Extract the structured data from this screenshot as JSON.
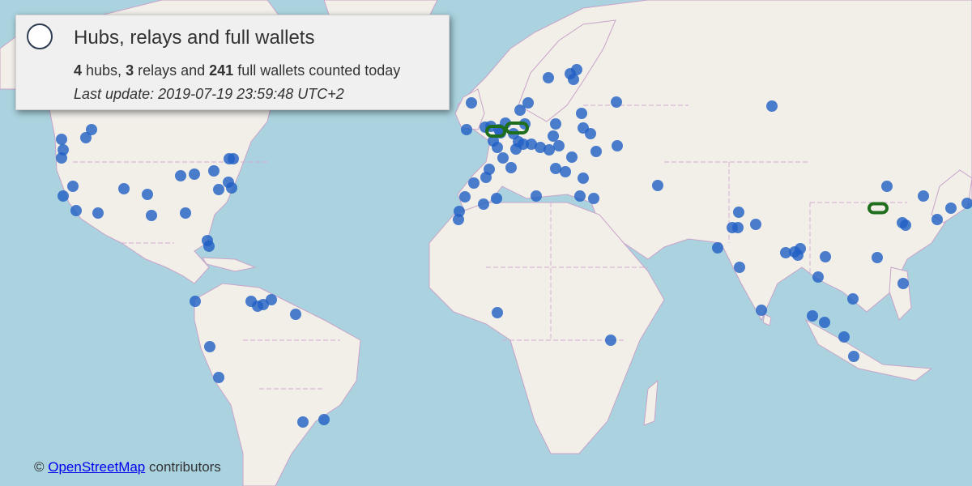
{
  "panel": {
    "title": "Hubs, relays and full wallets",
    "hubs_count": "4",
    "hubs_label": " hubs, ",
    "relays_count": "3",
    "relays_label": " relays and ",
    "wallets_count": "241",
    "wallets_label": " full wallets counted today",
    "last_update": "Last update: 2019-07-19 23:59:48 UTC+2"
  },
  "attribution": {
    "prefix": "© ",
    "link_text": "OpenStreetMap",
    "suffix": " contributors"
  },
  "colors": {
    "water": "#aad3df",
    "land": "#f2efe9",
    "wallet_marker": "#1f5fc4",
    "hub_marker": "#1e6e1e"
  }
}
